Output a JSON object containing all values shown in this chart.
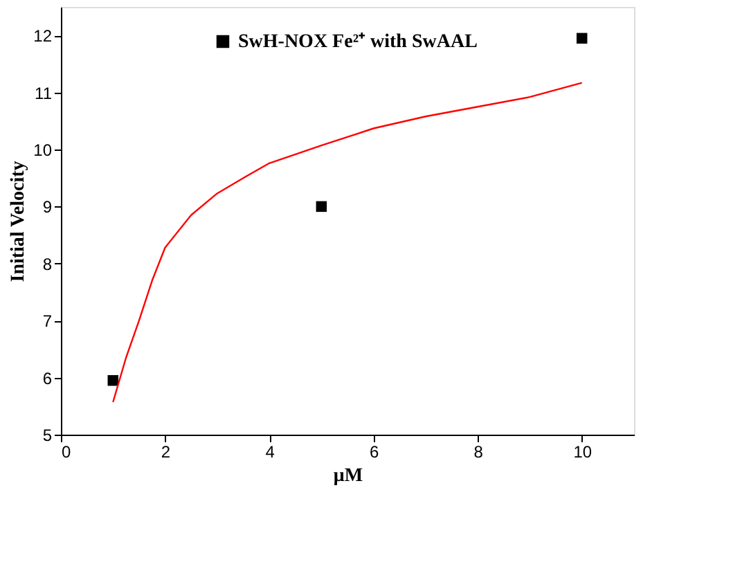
{
  "chart_data": {
    "type": "scatter",
    "xlabel": "μM",
    "ylabel": "Initial Velocity",
    "xlim": [
      0,
      11
    ],
    "xticks": [
      0,
      2,
      4,
      6,
      8,
      10
    ],
    "ylim": [
      5,
      12.5
    ],
    "yticks": [
      5,
      6,
      7,
      8,
      9,
      10,
      11,
      12
    ],
    "grid": false,
    "legend": "top",
    "marker": "square",
    "series": [
      {
        "name": "SwH-NOX Fe²⁺ with SwAAL",
        "color": "#000000",
        "x": [
          1,
          5,
          10
        ],
        "values": [
          5.95,
          9.0,
          11.95
        ]
      },
      {
        "type": "line",
        "color": "#ff0000",
        "line_style": "solid",
        "marker": "none",
        "x": [
          1,
          1.25,
          1.5,
          1.75,
          2,
          2.5,
          3,
          3.5,
          4,
          5,
          6,
          7,
          8,
          9,
          10
        ],
        "values": [
          5.57,
          6.35,
          7.0,
          7.7,
          8.28,
          8.85,
          9.23,
          9.5,
          9.76,
          10.07,
          10.37,
          10.58,
          10.75,
          10.92,
          11.17
        ]
      }
    ]
  }
}
